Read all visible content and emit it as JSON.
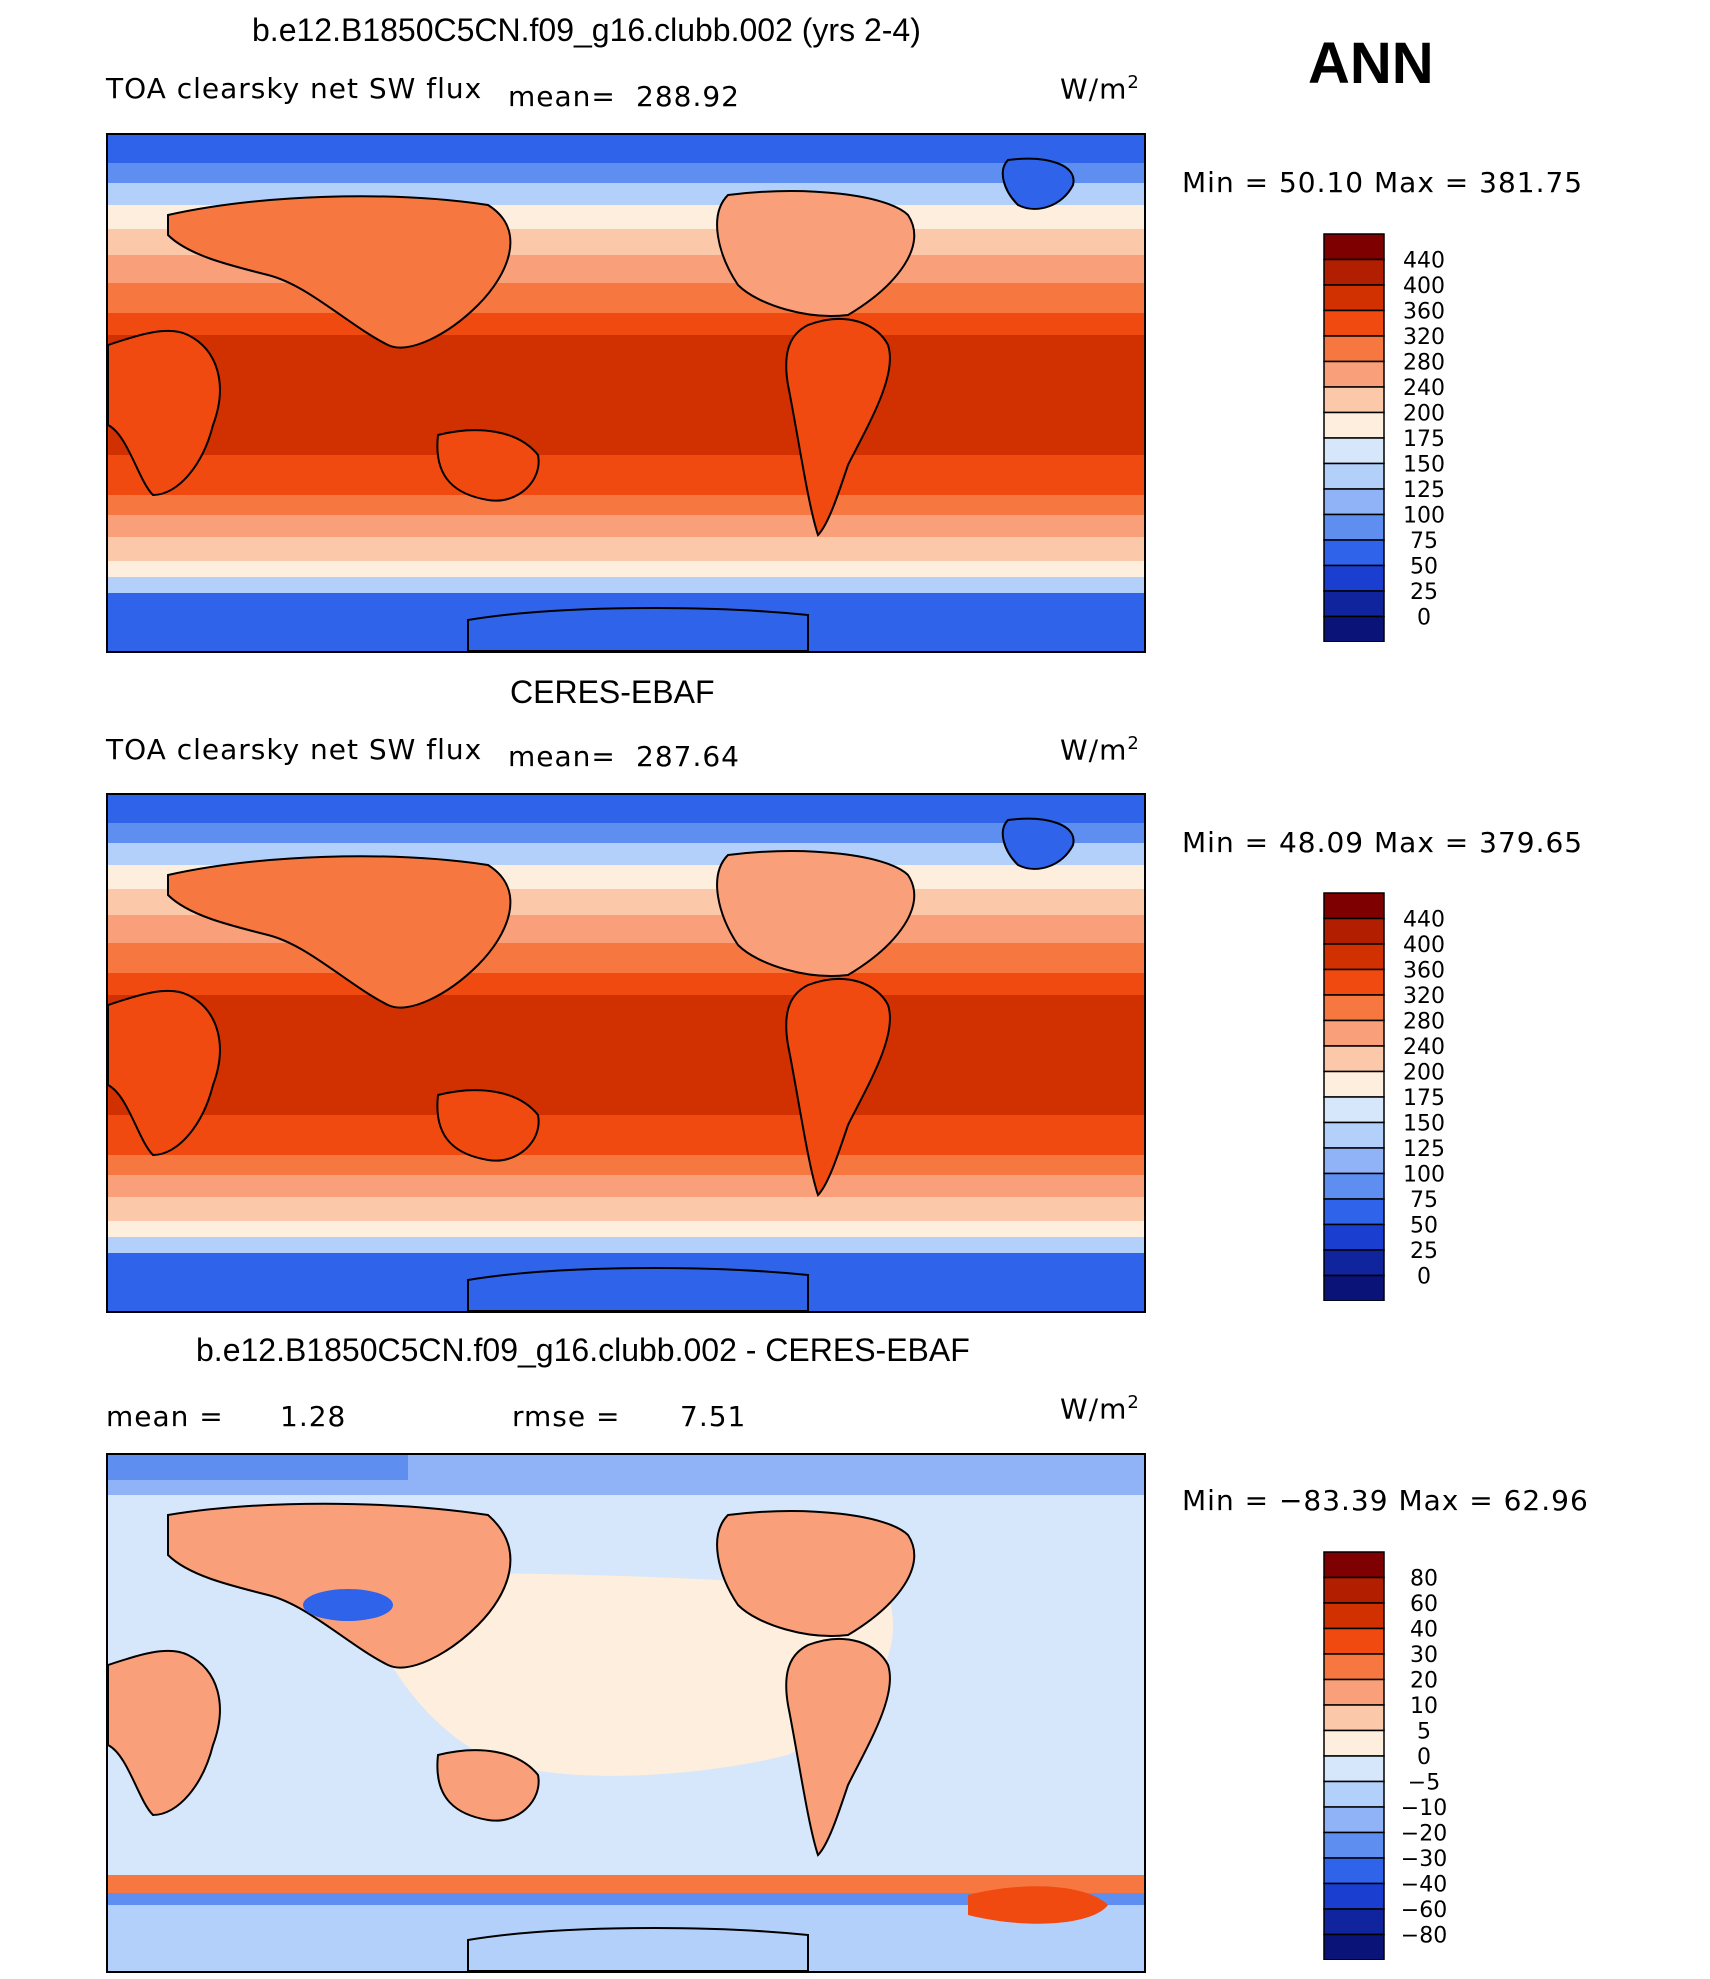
{
  "season": "ANN",
  "panels": [
    {
      "title": "b.e12.B1850C5CN.f09_g16.clubb.002 (yrs 2-4)",
      "variable": "TOA clearsky net SW flux",
      "mean_label": "mean=",
      "mean_value": "288.92",
      "units_base": "W/m",
      "units_exp": "2",
      "stats": "Min =   50.10  Max  =  381.75",
      "colorbar": [
        "440",
        "400",
        "360",
        "320",
        "280",
        "240",
        "200",
        "175",
        "150",
        "125",
        "100",
        "75",
        "50",
        "25",
        "0"
      ],
      "colors": [
        "#7f0000",
        "#b21e00",
        "#d13000",
        "#f04a10",
        "#f67840",
        "#f9a07a",
        "#fcc8aa",
        "#fdeedd",
        "#d6e6fb",
        "#b3d0fa",
        "#8fb3f6",
        "#5e8ef0",
        "#2f63ea",
        "#1a3fd0",
        "#10249e",
        "#0a1478"
      ]
    },
    {
      "title": "CERES-EBAF",
      "variable": "TOA clearsky net SW flux",
      "mean_label": "mean=",
      "mean_value": "287.64",
      "units_base": "W/m",
      "units_exp": "2",
      "stats": "Min =   48.09  Max  =  379.65",
      "colorbar": [
        "440",
        "400",
        "360",
        "320",
        "280",
        "240",
        "200",
        "175",
        "150",
        "125",
        "100",
        "75",
        "50",
        "25",
        "0"
      ],
      "colors": [
        "#7f0000",
        "#b21e00",
        "#d13000",
        "#f04a10",
        "#f67840",
        "#f9a07a",
        "#fcc8aa",
        "#fdeedd",
        "#d6e6fb",
        "#b3d0fa",
        "#8fb3f6",
        "#5e8ef0",
        "#2f63ea",
        "#1a3fd0",
        "#10249e",
        "#0a1478"
      ]
    },
    {
      "title": "b.e12.B1850C5CN.f09_g16.clubb.002 - CERES-EBAF",
      "mean_label": "mean  =",
      "mean_value": "1.28",
      "rmse_label": "rmse  =",
      "rmse_value": "7.51",
      "units_base": "W/m",
      "units_exp": "2",
      "stats": "Min = −83.39  Max  =    62.96",
      "colorbar": [
        "80",
        "60",
        "40",
        "30",
        "20",
        "10",
        "5",
        "0",
        "−5",
        "−10",
        "−20",
        "−30",
        "−40",
        "−60",
        "−80"
      ],
      "colors": [
        "#7f0000",
        "#b21e00",
        "#d13000",
        "#f04a10",
        "#f67840",
        "#f9a07a",
        "#fcc8aa",
        "#fdeedd",
        "#d6e6fb",
        "#b3d0fa",
        "#8fb3f6",
        "#5e8ef0",
        "#2f63ea",
        "#1a3fd0",
        "#10249e",
        "#0a1478"
      ]
    }
  ]
}
